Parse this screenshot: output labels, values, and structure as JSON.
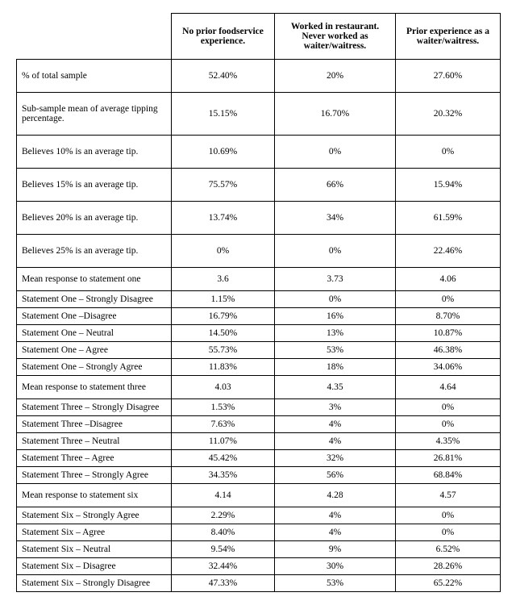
{
  "table": {
    "type": "table",
    "background_color": "#ffffff",
    "border_color": "#000000",
    "font_family": "Times New Roman",
    "header_fontsize": 11.5,
    "cell_fontsize": 11.5,
    "columns": [
      "No prior foodservice experience.",
      "Worked in restaurant. Never worked as waiter/waitress.",
      "Prior experience as a waiter/waitress."
    ],
    "rows": [
      {
        "label": "% of total sample",
        "bold": true,
        "pad": "tall",
        "v": [
          "52.40%",
          "20%",
          "27.60%"
        ]
      },
      {
        "label": "Sub-sample mean of average tipping percentage.",
        "bold": true,
        "pad": "tall",
        "v": [
          "15.15%",
          "16.70%",
          "20.32%"
        ]
      },
      {
        "label": "Believes 10% is an average tip.",
        "bold": false,
        "pad": "tall",
        "v": [
          "10.69%",
          "0%",
          "0%"
        ]
      },
      {
        "label": "Believes 15% is an average tip.",
        "bold": false,
        "pad": "tall",
        "v": [
          "75.57%",
          "66%",
          "15.94%"
        ]
      },
      {
        "label": "Believes 20% is an average tip.",
        "bold": false,
        "pad": "tall",
        "v": [
          "13.74%",
          "34%",
          "61.59%"
        ]
      },
      {
        "label": "Believes 25% is an average tip.",
        "bold": false,
        "pad": "tall",
        "v": [
          "0%",
          "0%",
          "22.46%"
        ]
      },
      {
        "label": "Mean response to statement one",
        "bold": true,
        "pad": "med",
        "v": [
          "3.6",
          "3.73",
          "4.06"
        ]
      },
      {
        "label": "Statement One – Strongly Disagree",
        "bold": false,
        "pad": "",
        "v": [
          "1.15%",
          "0%",
          "0%"
        ]
      },
      {
        "label": "Statement One –Disagree",
        "bold": false,
        "pad": "",
        "v": [
          "16.79%",
          "16%",
          "8.70%"
        ]
      },
      {
        "label": "Statement One – Neutral",
        "bold": false,
        "pad": "",
        "v": [
          "14.50%",
          "13%",
          "10.87%"
        ]
      },
      {
        "label": "Statement One – Agree",
        "bold": false,
        "pad": "",
        "v": [
          "55.73%",
          "53%",
          "46.38%"
        ]
      },
      {
        "label": "Statement One – Strongly Agree",
        "bold": false,
        "pad": "",
        "v": [
          "11.83%",
          "18%",
          "34.06%"
        ]
      },
      {
        "label": "Mean response to statement three",
        "bold": true,
        "pad": "med",
        "v": [
          "4.03",
          "4.35",
          "4.64"
        ]
      },
      {
        "label": "Statement Three – Strongly Disagree",
        "bold": false,
        "pad": "",
        "v": [
          "1.53%",
          "3%",
          "0%"
        ]
      },
      {
        "label": "Statement  Three –Disagree",
        "bold": false,
        "pad": "",
        "v": [
          "7.63%",
          "4%",
          "0%"
        ]
      },
      {
        "label": "Statement  Three – Neutral",
        "bold": false,
        "pad": "",
        "v": [
          "11.07%",
          "4%",
          "4.35%"
        ]
      },
      {
        "label": "Statement  Three – Agree",
        "bold": false,
        "pad": "",
        "v": [
          "45.42%",
          "32%",
          "26.81%"
        ]
      },
      {
        "label": "Statement  Three – Strongly Agree",
        "bold": false,
        "pad": "",
        "v": [
          "34.35%",
          "56%",
          "68.84%"
        ]
      },
      {
        "label": "Mean response to statement six",
        "bold": true,
        "pad": "med",
        "v": [
          "4.14",
          "4.28",
          "4.57"
        ]
      },
      {
        "label": "Statement Six – Strongly Agree",
        "bold": false,
        "pad": "",
        "v": [
          "2.29%",
          "4%",
          "0%"
        ]
      },
      {
        "label": "Statement Six – Agree",
        "bold": false,
        "pad": "",
        "v": [
          "8.40%",
          "4%",
          "0%"
        ]
      },
      {
        "label": "Statement Six – Neutral",
        "bold": false,
        "pad": "",
        "v": [
          "9.54%",
          "9%",
          "6.52%"
        ]
      },
      {
        "label": "Statement Six – Disagree",
        "bold": false,
        "pad": "",
        "v": [
          "32.44%",
          "30%",
          "28.26%"
        ]
      },
      {
        "label": "Statement Six – Strongly Disagree",
        "bold": false,
        "pad": "",
        "v": [
          "47.33%",
          "53%",
          "65.22%"
        ]
      }
    ]
  }
}
